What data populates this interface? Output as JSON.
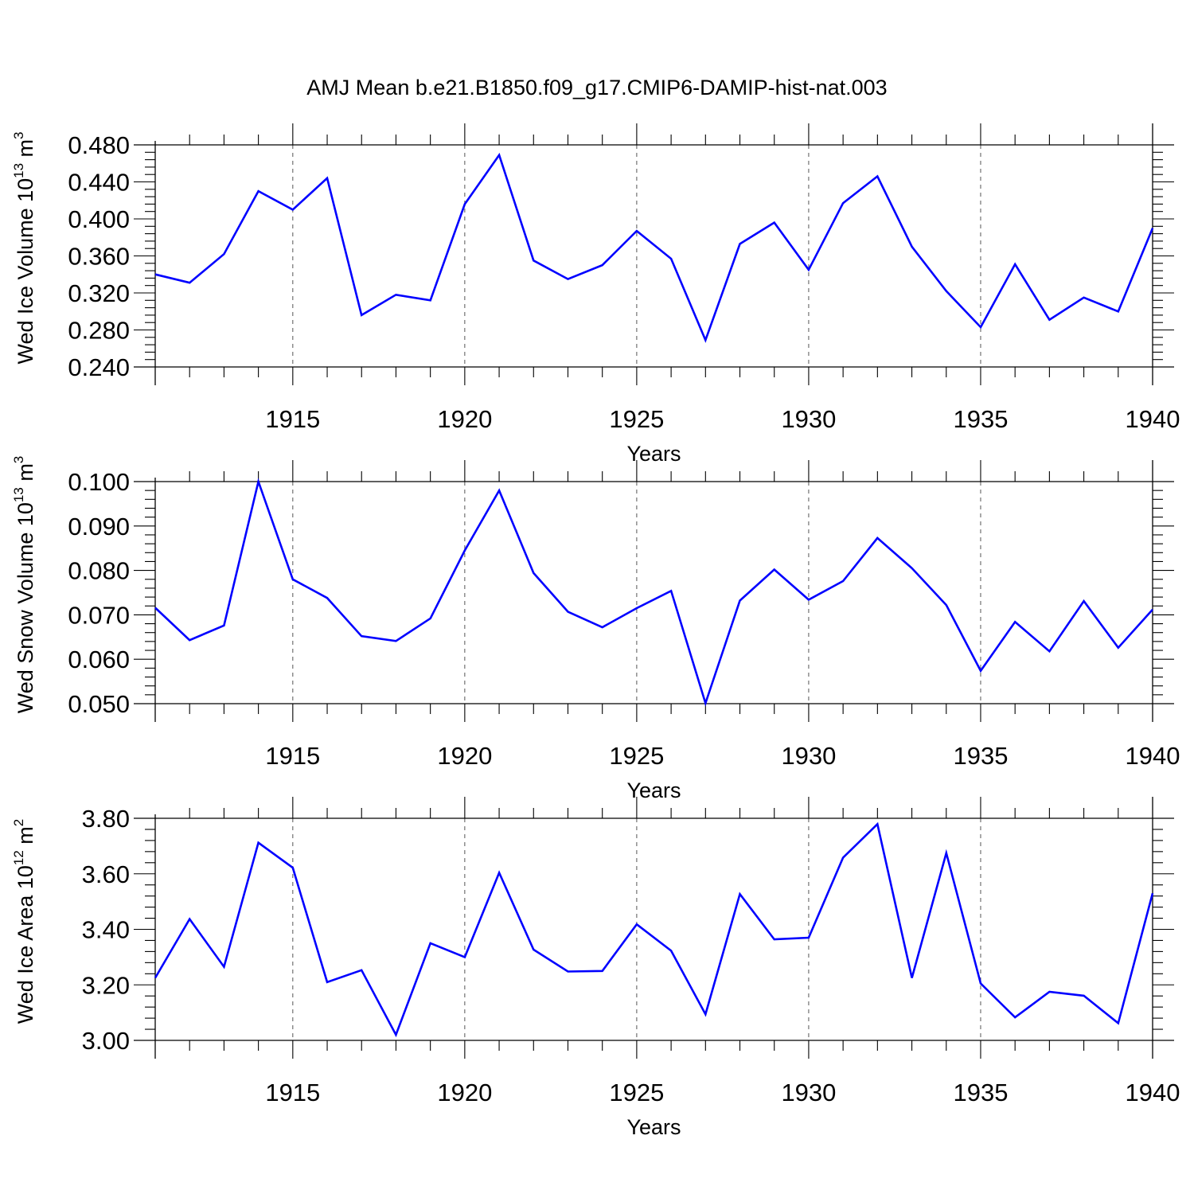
{
  "title": "AMJ Mean b.e21.B1850.f09_g17.CMIP6-DAMIP-hist-nat.003",
  "colors": {
    "line": "#0000ff",
    "axes": "#000000",
    "grid": "#555555"
  },
  "chart_data": [
    {
      "type": "line",
      "ylabel": {
        "prefix": "Wed Ice Volume 10",
        "exponent": "13",
        "unit": " m",
        "unit_exponent": "3"
      },
      "xlabel": "Years",
      "xlim": [
        1911,
        1940
      ],
      "ylim": [
        0.24,
        0.48
      ],
      "xticks": [
        1915,
        1920,
        1925,
        1930,
        1935,
        1940
      ],
      "xtick_labels": [
        "1915",
        "1920",
        "1925",
        "1930",
        "1935",
        "1940"
      ],
      "yticks": [
        0.24,
        0.28,
        0.32,
        0.36,
        0.4,
        0.44,
        0.48
      ],
      "ytick_labels": [
        "0.240",
        "0.280",
        "0.320",
        "0.360",
        "0.400",
        "0.440",
        "0.480"
      ],
      "grid": "vertical dashed at major x ticks",
      "x": [
        1911,
        1912,
        1913,
        1914,
        1915,
        1916,
        1917,
        1918,
        1919,
        1920,
        1921,
        1922,
        1923,
        1924,
        1925,
        1926,
        1927,
        1928,
        1929,
        1930,
        1931,
        1932,
        1933,
        1934,
        1935,
        1936,
        1937,
        1938,
        1939,
        1940
      ],
      "y": [
        0.34,
        0.331,
        0.362,
        0.43,
        0.41,
        0.444,
        0.296,
        0.318,
        0.312,
        0.416,
        0.469,
        0.355,
        0.335,
        0.35,
        0.387,
        0.357,
        0.269,
        0.373,
        0.396,
        0.345,
        0.417,
        0.446,
        0.37,
        0.322,
        0.283,
        0.351,
        0.291,
        0.315,
        0.3,
        0.39
      ]
    },
    {
      "type": "line",
      "ylabel": {
        "prefix": "Wed Snow Volume 10",
        "exponent": "13",
        "unit": " m",
        "unit_exponent": "3"
      },
      "xlabel": "Years",
      "xlim": [
        1911,
        1940
      ],
      "ylim": [
        0.05,
        0.1
      ],
      "xticks": [
        1915,
        1920,
        1925,
        1930,
        1935,
        1940
      ],
      "xtick_labels": [
        "1915",
        "1920",
        "1925",
        "1930",
        "1935",
        "1940"
      ],
      "yticks": [
        0.05,
        0.06,
        0.07,
        0.08,
        0.09,
        0.1
      ],
      "ytick_labels": [
        "0.050",
        "0.060",
        "0.070",
        "0.080",
        "0.090",
        "0.100"
      ],
      "grid": "vertical dashed at major x ticks",
      "x": [
        1911,
        1912,
        1913,
        1914,
        1915,
        1916,
        1917,
        1918,
        1919,
        1920,
        1921,
        1922,
        1923,
        1924,
        1925,
        1926,
        1927,
        1928,
        1929,
        1930,
        1931,
        1932,
        1933,
        1934,
        1935,
        1936,
        1937,
        1938,
        1939,
        1940
      ],
      "y": [
        0.0716,
        0.0643,
        0.0676,
        0.1,
        0.078,
        0.0738,
        0.0652,
        0.0641,
        0.0692,
        0.0845,
        0.098,
        0.0794,
        0.0707,
        0.0672,
        0.0715,
        0.0754,
        0.0501,
        0.0732,
        0.0802,
        0.0734,
        0.0776,
        0.0873,
        0.0805,
        0.0722,
        0.0574,
        0.0684,
        0.0618,
        0.0731,
        0.0626,
        0.0712
      ]
    },
    {
      "type": "line",
      "ylabel": {
        "prefix": "Wed Ice Area 10",
        "exponent": "12",
        "unit": " m",
        "unit_exponent": "2"
      },
      "xlabel": "Years",
      "xlim": [
        1911,
        1940
      ],
      "ylim": [
        3.0,
        3.8
      ],
      "xticks": [
        1915,
        1920,
        1925,
        1930,
        1935,
        1940
      ],
      "xtick_labels": [
        "1915",
        "1920",
        "1925",
        "1930",
        "1935",
        "1940"
      ],
      "yticks": [
        3.0,
        3.2,
        3.4,
        3.6,
        3.8
      ],
      "ytick_labels": [
        "3.00",
        "3.20",
        "3.40",
        "3.60",
        "3.80"
      ],
      "grid": "vertical dashed at major x ticks",
      "x": [
        1911,
        1912,
        1913,
        1914,
        1915,
        1916,
        1917,
        1918,
        1919,
        1920,
        1921,
        1922,
        1923,
        1924,
        1925,
        1926,
        1927,
        1928,
        1929,
        1930,
        1931,
        1932,
        1933,
        1934,
        1935,
        1936,
        1937,
        1938,
        1939,
        1940
      ],
      "y": [
        3.225,
        3.437,
        3.265,
        3.712,
        3.622,
        3.21,
        3.253,
        3.02,
        3.35,
        3.3,
        3.604,
        3.327,
        3.248,
        3.25,
        3.418,
        3.323,
        3.094,
        3.527,
        3.364,
        3.37,
        3.658,
        3.779,
        3.225,
        3.675,
        3.205,
        3.083,
        3.175,
        3.161,
        3.062,
        3.53
      ]
    }
  ]
}
